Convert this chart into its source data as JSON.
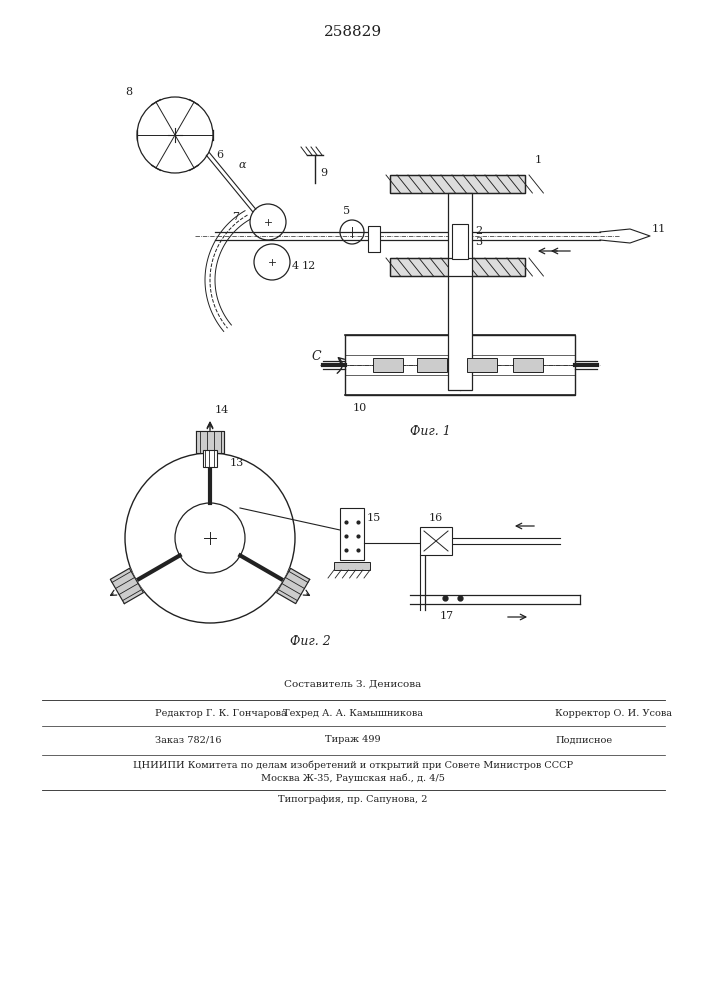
{
  "title": "258829",
  "fig1_label": "Фиг. 1",
  "fig2_label": "Фиг. 2",
  "bg_color": "#ffffff",
  "line_color": "#222222",
  "footer_lines": [
    "Составитель З. Денисова",
    "Редактор Г. К. Гончарова",
    "Техред А. А. Камышникова",
    "Корректор О. И. Усова",
    "Заказ 782/16",
    "Тираж 499",
    "Подписное",
    "ЦНИИПИ Комитета по делам изобретений и открытий при Совете Министров СССР",
    "Москва Ж-35, Раушская наб., д. 4/5",
    "Типография, пр. Сапунова, 2"
  ]
}
